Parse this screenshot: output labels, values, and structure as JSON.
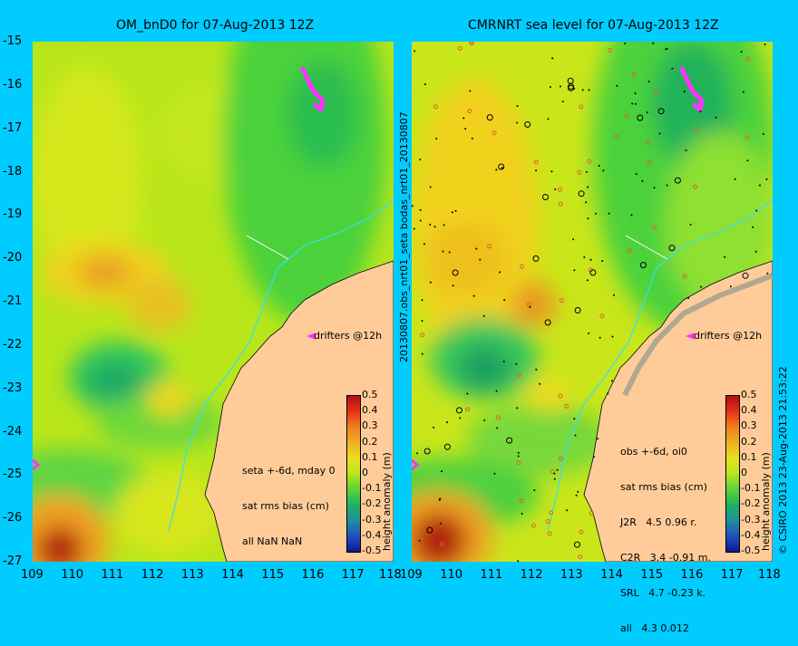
{
  "left_panel": {
    "title": "OM_bnD0 for 07-Aug-2013 12Z",
    "stats": [
      "seta +-6d, mday 0",
      "sat rms bias (cm)",
      "all NaN NaN"
    ],
    "drifters_label": "drifters @12h"
  },
  "right_panel": {
    "title": "CMRNRT sea level  for 07-Aug-2013 12Z",
    "stats": [
      "obs +-6d, oi0",
      "sat rms bias (cm)",
      "J2R   4.5 0.96 r.",
      "C2R   3.4 -0.91 m.",
      "SRL   4.7 -0.23 k.",
      "all   4.3 0.012"
    ],
    "drifters_label": "drifters @12h"
  },
  "side_labels": {
    "middle": "20130807.obs_nrt01_seta    bodas_nrt01_20130807",
    "right": "© CSIRO 2013   23-Aug-2013 21:53:22"
  },
  "axes": {
    "y_ticks": [
      "-15",
      "-16",
      "-17",
      "-18",
      "-19",
      "-20",
      "-21",
      "-22",
      "-23",
      "-24",
      "-25",
      "-26",
      "-27"
    ],
    "x_ticks": [
      "109",
      "110",
      "111",
      "112",
      "113",
      "114",
      "115",
      "116",
      "117",
      "118"
    ],
    "lon_range": [
      109,
      118
    ],
    "lat_range": [
      -27,
      -15
    ]
  },
  "colorbar": {
    "label": "height anomaly (m)",
    "ticks": [
      "0.5",
      "0.4",
      "0.3",
      "0.2",
      "0.1",
      "0",
      "-0.1",
      "-0.2",
      "-0.3",
      "-0.4",
      "-0.5"
    ],
    "range": [
      -0.5,
      0.5
    ]
  },
  "colors": {
    "background": "#00ccff",
    "land": "#ffcc99",
    "drifter": "#ff33ff",
    "coastline_track": "#33ddff",
    "field_base": "#b9e61a"
  }
}
